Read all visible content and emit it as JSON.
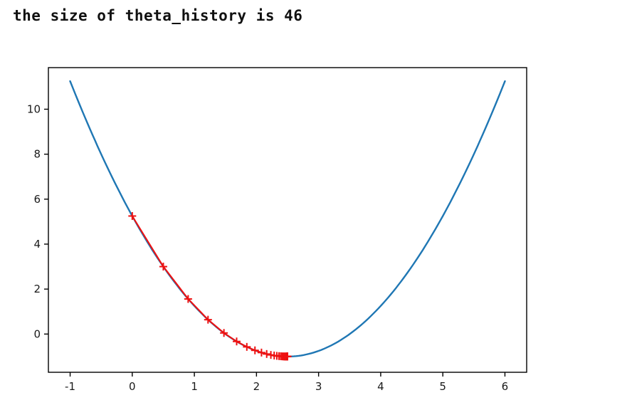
{
  "output_text": "the size of theta_history is 46",
  "chart_data": {
    "type": "line",
    "title": "",
    "xlabel": "",
    "ylabel": "",
    "grid": false,
    "legend": null,
    "xlim": [
      -1.35,
      6.35
    ],
    "ylim": [
      -1.7,
      11.85
    ],
    "xticks": [
      -1,
      0,
      1,
      2,
      3,
      4,
      5,
      6
    ],
    "yticks": [
      0,
      2,
      4,
      6,
      8,
      10
    ],
    "axes_color": "#000000",
    "tick_label_color": "#1a1a1a",
    "tick_font_size": 15,
    "curve": {
      "name": "loss-function-curve",
      "type": "quadratic",
      "equation": "y = (x - 2.5)^2 - 1",
      "a": 1,
      "h": 2.5,
      "k": -1,
      "x_range": [
        -1,
        6
      ],
      "color": "#1f77b4",
      "line_width": 2.4
    },
    "descent": {
      "name": "gradient-descent-path",
      "marker": "+",
      "color": "#ee1111",
      "line_width": 2.1,
      "marker_half_size": 5.5,
      "point_count": 46,
      "theta_history": [
        0,
        0.5,
        0.9,
        1.22,
        1.476,
        1.6808,
        1.8446,
        1.9757,
        2.0806,
        2.1645,
        2.2316,
        2.2853,
        2.3282,
        2.3626,
        2.39,
        2.412,
        2.4296,
        2.4437,
        2.455,
        2.464,
        2.4712,
        2.4769,
        2.4816,
        2.4852,
        2.4882,
        2.4906,
        2.4924,
        2.494,
        2.4952,
        2.4961,
        2.4969,
        2.4975,
        2.498,
        2.4984,
        2.4987,
        2.499,
        2.4992,
        2.4994,
        2.4995,
        2.4996,
        2.4997,
        2.4997,
        2.4998,
        2.4998,
        2.4999,
        2.4999
      ]
    }
  }
}
